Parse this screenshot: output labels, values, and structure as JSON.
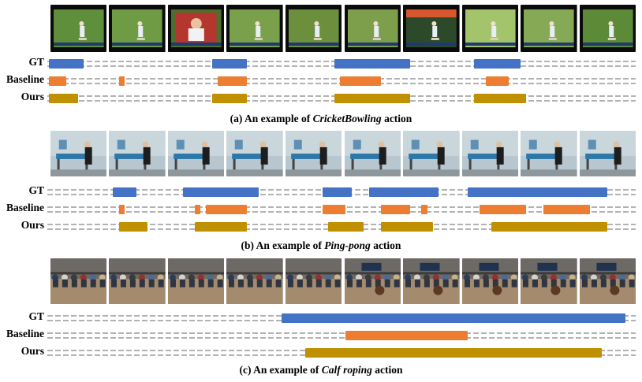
{
  "colors": {
    "gt": "#4472C4",
    "baseline": "#ED7D31",
    "ours": "#BF9000",
    "dash": "#333333"
  },
  "row_labels": {
    "gt": "GT",
    "baseline": "Baseline",
    "ours": "Ours"
  },
  "panels": [
    {
      "caption_prefix": "(a) An example of ",
      "caption_action": "CricketBowling",
      "caption_suffix": " action",
      "scene": "cricket",
      "frame_count": 10,
      "timeline_range": [
        0,
        100
      ],
      "segments": {
        "gt": [
          [
            0,
            6
          ],
          [
            28,
            34
          ],
          [
            49,
            62
          ],
          [
            73,
            81
          ]
        ],
        "baseline": [
          [
            0,
            3
          ],
          [
            12,
            13
          ],
          [
            29,
            34
          ],
          [
            50,
            57
          ],
          [
            75,
            79
          ]
        ],
        "ours": [
          [
            0,
            5
          ],
          [
            28,
            34
          ],
          [
            49,
            62
          ],
          [
            73,
            82
          ]
        ]
      }
    },
    {
      "caption_prefix": "(b) An example of ",
      "caption_action": "Ping-pong",
      "caption_suffix": " action",
      "scene": "pingpong",
      "frame_count": 10,
      "timeline_range": [
        0,
        100
      ],
      "segments": {
        "gt": [
          [
            11,
            15
          ],
          [
            23,
            36
          ],
          [
            47,
            52
          ],
          [
            55,
            67
          ],
          [
            72,
            96
          ]
        ],
        "baseline": [
          [
            12,
            13
          ],
          [
            25,
            26
          ],
          [
            27,
            34
          ],
          [
            47,
            51
          ],
          [
            57,
            62
          ],
          [
            64,
            65
          ],
          [
            74,
            82
          ],
          [
            85,
            93
          ]
        ],
        "ours": [
          [
            12,
            17
          ],
          [
            25,
            34
          ],
          [
            48,
            54
          ],
          [
            57,
            66
          ],
          [
            76,
            96
          ]
        ]
      }
    },
    {
      "caption_prefix": "(c) An example of ",
      "caption_action": "Calf roping",
      "caption_suffix": " action",
      "scene": "rodeo",
      "frame_count": 10,
      "timeline_range": [
        0,
        100
      ],
      "segments": {
        "gt": [
          [
            40,
            99
          ]
        ],
        "baseline": [
          [
            51,
            72
          ]
        ],
        "ours": [
          [
            44,
            95
          ]
        ]
      }
    }
  ]
}
